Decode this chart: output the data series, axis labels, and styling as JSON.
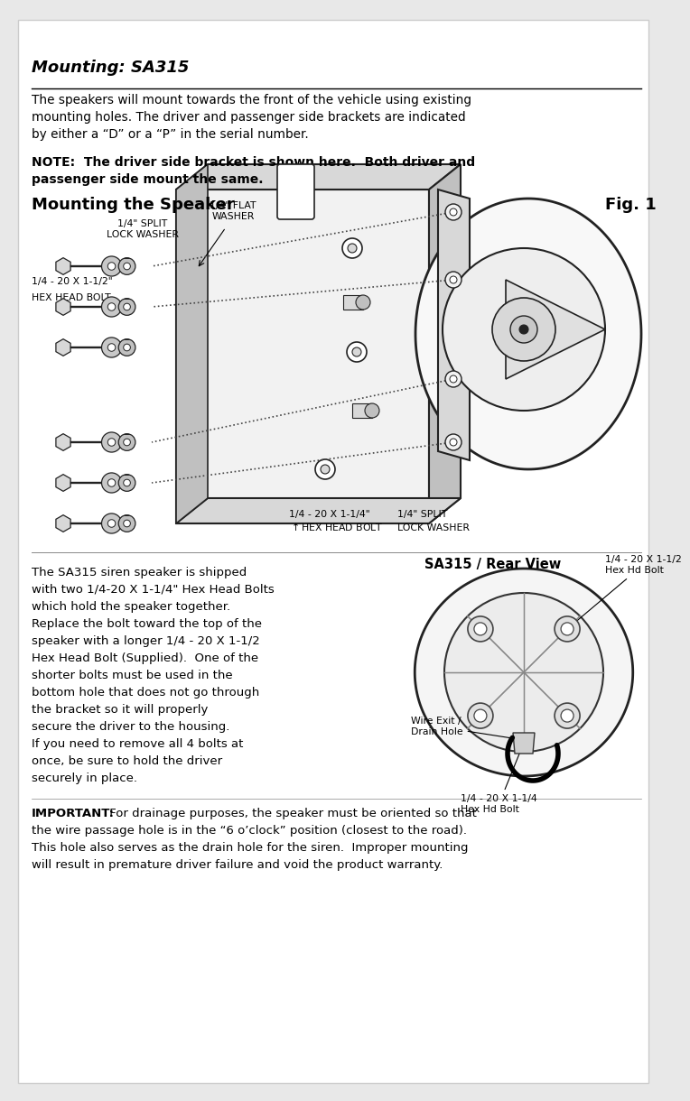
{
  "bg_color": "#e8e8e8",
  "page_bg": "#ffffff",
  "title": "Mounting: SA315",
  "para1_line1": "The speakers will mount towards the front of the vehicle using existing",
  "para1_line2": "mounting holes. The driver and passenger side brackets are indicated",
  "para1_line3": "by either a “D” or a “P” in the serial number.",
  "note_line1": "NOTE:  The driver side bracket is shown here.  Both driver and",
  "note_line2": "passenger side mount the same.",
  "section_title": "Mounting the Speaker",
  "fig_label": "Fig. 1",
  "label_split_lock_top": "1/4\" SPLIT\nLOCK WASHER",
  "label_flat_washer": "1/4\" FLAT\nWASHER",
  "label_hex_top": "1/4 - 20 X 1-1/2\"\nHEX HEAD BOLT",
  "label_hex_bot": "1/4 - 20 X 1-1/4\"\nHEX HEAD BOLT",
  "label_split_lock_bot": "1/4\" SPLIT\nLOCK WASHER",
  "rear_title": "SA315 / Rear View",
  "rv_label_top": "1/4 - 20 X 1-1/2\nHex Hd Bolt",
  "rv_label_wire": "Wire Exit /\nDrain Hole",
  "rv_label_bot": "1/4 - 20 X 1-1/4\nHex Hd Bolt",
  "body_line1": "The SA315 siren speaker is shipped",
  "body_line2": "with two 1/4-20 X 1-1/4\" Hex Head Bolts",
  "body_line3": "which hold the speaker together.",
  "body_line4": "Replace the bolt toward the top of the",
  "body_line5": "speaker with a longer 1/4 - 20 X 1-1/2",
  "body_line6": "Hex Head Bolt (Supplied).  One of the",
  "body_line7": "shorter bolts must be used in the",
  "body_line8": "bottom hole that does not go through",
  "body_line9": "the bracket so it will properly",
  "body_line10": "secure the driver to the housing.",
  "body_line11": "If you need to remove all 4 bolts at",
  "body_line12": "once, be sure to hold the driver",
  "body_line13": "securely in place.",
  "imp_label": "IMPORTANT:",
  "imp_rest": " For drainage purposes, the speaker must be oriented so that",
  "imp_line2": "the wire passage hole is in the “6 o’clock” position (closest to the road).",
  "imp_line3": "This hole also serves as the drain hole for the siren.  Improper mounting",
  "imp_line4": "will result in premature driver failure and void the product warranty."
}
